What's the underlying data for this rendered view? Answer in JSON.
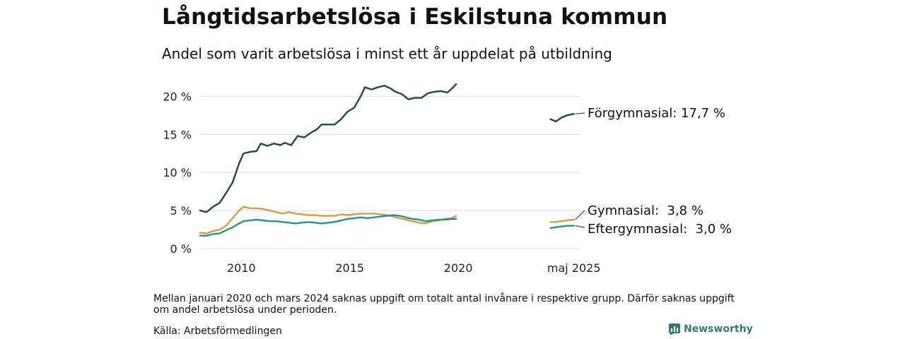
{
  "title": "Långtidsarbetslösa i Eskilstuna kommun",
  "subtitle": "Andel som varit arbetslösa i minst ett år uppdelat på utbildning",
  "note": "Mellan januari 2020 och mars 2024 saknas uppgift om totalt antal invånare i respektive grupp. Därför saknas uppgift om andel arbetslösa under perioden.",
  "source": "Källa: Arbetsförmedlingen",
  "brand": "Newsworthy",
  "chart_data": {
    "type": "line",
    "x_ticks": [
      {
        "x": 2010,
        "label": "2010"
      },
      {
        "x": 2015,
        "label": "2015"
      },
      {
        "x": 2020,
        "label": "2020"
      },
      {
        "x": 2025.33,
        "label": "maj 2025"
      }
    ],
    "y_ticks": [
      {
        "y": 0,
        "label": "0 %"
      },
      {
        "y": 5,
        "label": "5 %"
      },
      {
        "y": 10,
        "label": "10 %"
      },
      {
        "y": 15,
        "label": "15 %"
      },
      {
        "y": 20,
        "label": "20 %"
      }
    ],
    "xlim": [
      2008.1,
      2025.6
    ],
    "ylim": [
      0,
      21.8
    ],
    "grid": true,
    "series": [
      {
        "label": "Förgymnasial: 17,7 %",
        "color": "#1f4a43",
        "segments": [
          [
            [
              2008.1,
              5.0
            ],
            [
              2008.4,
              4.8
            ],
            [
              2008.7,
              5.5
            ],
            [
              2009.0,
              6.0
            ],
            [
              2009.3,
              7.3
            ],
            [
              2009.6,
              8.7
            ],
            [
              2009.9,
              11.2
            ],
            [
              2010.1,
              12.5
            ],
            [
              2010.4,
              12.7
            ],
            [
              2010.7,
              12.8
            ],
            [
              2010.9,
              13.8
            ],
            [
              2011.2,
              13.5
            ],
            [
              2011.5,
              13.8
            ],
            [
              2011.8,
              13.6
            ],
            [
              2012.0,
              13.9
            ],
            [
              2012.3,
              13.6
            ],
            [
              2012.6,
              14.8
            ],
            [
              2012.9,
              14.6
            ],
            [
              2013.2,
              15.2
            ],
            [
              2013.5,
              15.7
            ],
            [
              2013.7,
              16.3
            ],
            [
              2014.0,
              16.3
            ],
            [
              2014.3,
              16.3
            ],
            [
              2014.6,
              17.0
            ],
            [
              2014.9,
              18.0
            ],
            [
              2015.2,
              18.5
            ],
            [
              2015.5,
              20.0
            ],
            [
              2015.7,
              21.2
            ],
            [
              2016.0,
              20.9
            ],
            [
              2016.3,
              21.2
            ],
            [
              2016.6,
              21.4
            ],
            [
              2016.9,
              21.0
            ],
            [
              2017.1,
              20.6
            ],
            [
              2017.4,
              20.3
            ],
            [
              2017.7,
              19.6
            ],
            [
              2018.0,
              19.8
            ],
            [
              2018.3,
              19.8
            ],
            [
              2018.6,
              20.4
            ],
            [
              2018.9,
              20.6
            ],
            [
              2019.2,
              20.7
            ],
            [
              2019.5,
              20.5
            ],
            [
              2019.7,
              21.0
            ],
            [
              2019.9,
              21.6
            ]
          ],
          [
            [
              2024.25,
              17.0
            ],
            [
              2024.5,
              16.7
            ],
            [
              2024.75,
              17.2
            ],
            [
              2025.0,
              17.5
            ],
            [
              2025.33,
              17.7
            ]
          ]
        ]
      },
      {
        "label": "Gymnasial:  3,8 %",
        "color": "#d19c4c",
        "segments": [
          [
            [
              2008.1,
              2.1
            ],
            [
              2008.4,
              2.0
            ],
            [
              2008.7,
              2.3
            ],
            [
              2009.0,
              2.5
            ],
            [
              2009.3,
              3.0
            ],
            [
              2009.6,
              4.0
            ],
            [
              2009.9,
              5.0
            ],
            [
              2010.1,
              5.5
            ],
            [
              2010.4,
              5.3
            ],
            [
              2010.7,
              5.3
            ],
            [
              2011.0,
              5.2
            ],
            [
              2011.3,
              5.0
            ],
            [
              2011.6,
              4.8
            ],
            [
              2011.9,
              4.6
            ],
            [
              2012.2,
              4.8
            ],
            [
              2012.5,
              4.6
            ],
            [
              2012.8,
              4.5
            ],
            [
              2013.1,
              4.4
            ],
            [
              2013.4,
              4.4
            ],
            [
              2013.7,
              4.3
            ],
            [
              2014.0,
              4.3
            ],
            [
              2014.3,
              4.3
            ],
            [
              2014.6,
              4.5
            ],
            [
              2014.9,
              4.4
            ],
            [
              2015.2,
              4.5
            ],
            [
              2015.5,
              4.6
            ],
            [
              2015.8,
              4.6
            ],
            [
              2016.1,
              4.6
            ],
            [
              2016.4,
              4.5
            ],
            [
              2016.7,
              4.4
            ],
            [
              2017.0,
              4.2
            ],
            [
              2017.3,
              4.0
            ],
            [
              2017.6,
              3.8
            ],
            [
              2017.9,
              3.6
            ],
            [
              2018.2,
              3.4
            ],
            [
              2018.5,
              3.3
            ],
            [
              2018.8,
              3.6
            ],
            [
              2019.1,
              3.7
            ],
            [
              2019.4,
              3.9
            ],
            [
              2019.7,
              4.0
            ],
            [
              2019.9,
              4.3
            ]
          ],
          [
            [
              2024.25,
              3.5
            ],
            [
              2024.5,
              3.5
            ],
            [
              2024.75,
              3.6
            ],
            [
              2025.0,
              3.7
            ],
            [
              2025.33,
              3.8
            ]
          ]
        ]
      },
      {
        "label": "Eftergymnasial:  3,0 %",
        "color": "#2a9184",
        "segments": [
          [
            [
              2008.1,
              1.7
            ],
            [
              2008.4,
              1.7
            ],
            [
              2008.7,
              1.9
            ],
            [
              2009.0,
              2.0
            ],
            [
              2009.3,
              2.4
            ],
            [
              2009.6,
              2.8
            ],
            [
              2009.9,
              3.3
            ],
            [
              2010.1,
              3.6
            ],
            [
              2010.4,
              3.7
            ],
            [
              2010.7,
              3.8
            ],
            [
              2011.0,
              3.7
            ],
            [
              2011.3,
              3.6
            ],
            [
              2011.6,
              3.6
            ],
            [
              2011.9,
              3.5
            ],
            [
              2012.2,
              3.4
            ],
            [
              2012.5,
              3.3
            ],
            [
              2012.8,
              3.4
            ],
            [
              2013.1,
              3.5
            ],
            [
              2013.4,
              3.4
            ],
            [
              2013.7,
              3.3
            ],
            [
              2014.0,
              3.4
            ],
            [
              2014.3,
              3.5
            ],
            [
              2014.6,
              3.7
            ],
            [
              2014.9,
              3.9
            ],
            [
              2015.2,
              4.0
            ],
            [
              2015.5,
              4.1
            ],
            [
              2015.8,
              4.0
            ],
            [
              2016.1,
              4.1
            ],
            [
              2016.4,
              4.2
            ],
            [
              2016.7,
              4.3
            ],
            [
              2017.0,
              4.4
            ],
            [
              2017.3,
              4.3
            ],
            [
              2017.6,
              4.1
            ],
            [
              2017.9,
              3.9
            ],
            [
              2018.2,
              3.8
            ],
            [
              2018.5,
              3.6
            ],
            [
              2018.8,
              3.7
            ],
            [
              2019.1,
              3.8
            ],
            [
              2019.4,
              3.8
            ],
            [
              2019.7,
              3.9
            ],
            [
              2019.9,
              3.9
            ]
          ],
          [
            [
              2024.25,
              2.7
            ],
            [
              2024.5,
              2.8
            ],
            [
              2024.75,
              2.9
            ],
            [
              2025.0,
              3.0
            ],
            [
              2025.33,
              3.0
            ]
          ]
        ]
      }
    ]
  }
}
